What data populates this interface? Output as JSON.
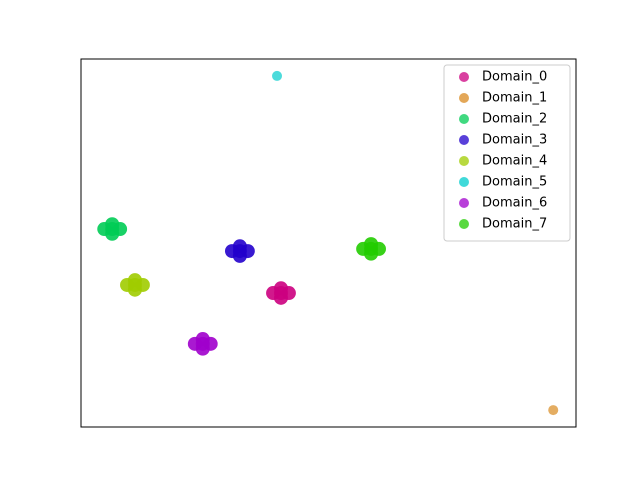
{
  "chart_data": {
    "type": "scatter",
    "xlim": [
      0,
      1
    ],
    "ylim": [
      0,
      1
    ],
    "legend": "upper right",
    "series": [
      {
        "name": "Domain_0",
        "color": "#cc0080",
        "x": [
          0.404,
          0.388,
          0.42,
          0.404,
          0.404
        ],
        "y": [
          0.364,
          0.364,
          0.364,
          0.377,
          0.351
        ]
      },
      {
        "name": "Domain_1",
        "color": "#d98a20",
        "x": [
          0.954
        ],
        "y": [
          0.046
        ]
      },
      {
        "name": "Domain_2",
        "color": "#00cc55",
        "x": [
          0.063,
          0.047,
          0.079,
          0.063,
          0.063
        ],
        "y": [
          0.538,
          0.538,
          0.538,
          0.551,
          0.525
        ]
      },
      {
        "name": "Domain_3",
        "color": "#2200cc",
        "x": [
          0.321,
          0.305,
          0.337,
          0.321,
          0.321
        ],
        "y": [
          0.478,
          0.478,
          0.478,
          0.491,
          0.465
        ]
      },
      {
        "name": "Domain_4",
        "color": "#a0cc00",
        "x": [
          0.109,
          0.093,
          0.125,
          0.109,
          0.109
        ],
        "y": [
          0.386,
          0.386,
          0.386,
          0.399,
          0.373
        ]
      },
      {
        "name": "Domain_5",
        "color": "#00cccc",
        "x": [
          0.396
        ],
        "y": [
          0.954
        ]
      },
      {
        "name": "Domain_6",
        "color": "#a000cc",
        "x": [
          0.246,
          0.23,
          0.262,
          0.246,
          0.246
        ],
        "y": [
          0.226,
          0.226,
          0.226,
          0.239,
          0.213
        ]
      },
      {
        "name": "Domain_7",
        "color": "#22cc00",
        "x": [
          0.586,
          0.57,
          0.602,
          0.586,
          0.586
        ],
        "y": [
          0.484,
          0.484,
          0.484,
          0.497,
          0.471
        ]
      }
    ]
  }
}
